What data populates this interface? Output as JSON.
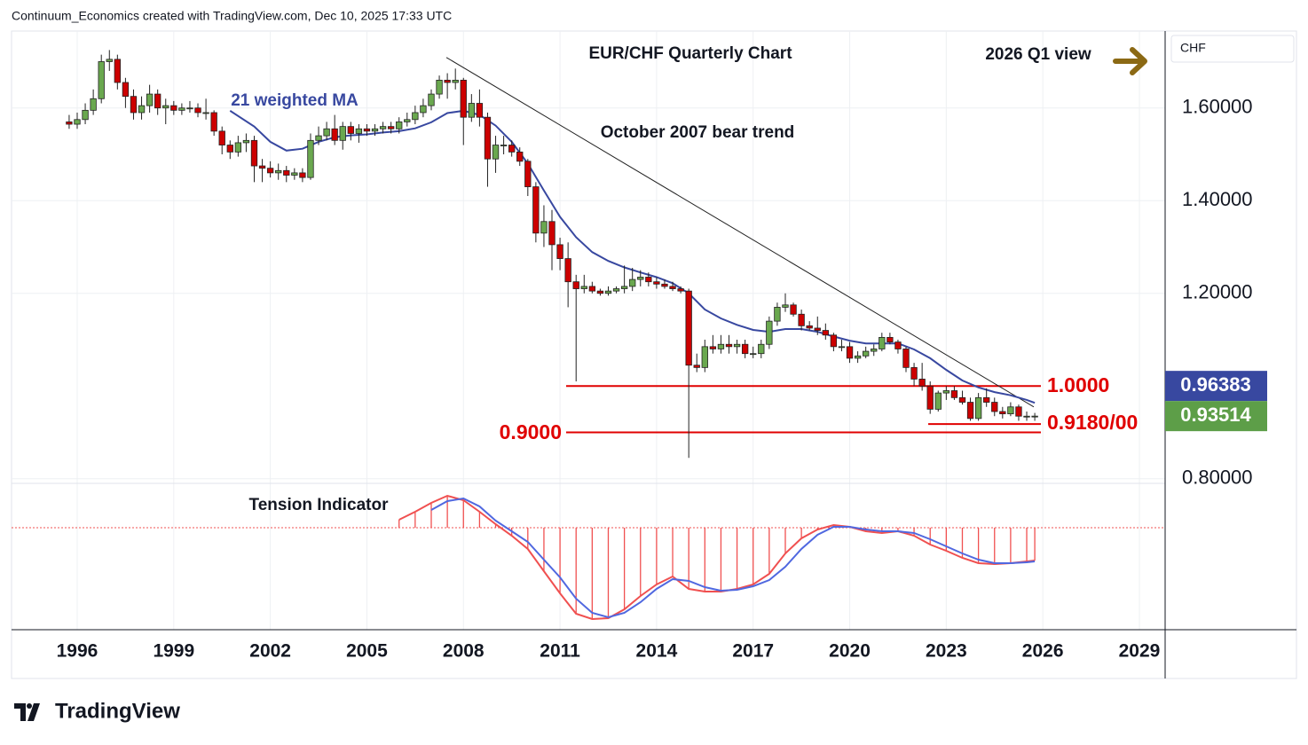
{
  "header": "Continuum_Economics created with TradingView.com, Dec 10, 2025 17:33 UTC",
  "branding": "TradingView",
  "chart_data": [
    {
      "type": "candlestick",
      "title": "EUR/CHF Quarterly Chart",
      "subtitle": "2026 Q1 view",
      "currency": "CHF",
      "up_color": "#6aa84f",
      "down_color": "#cc0000",
      "xlim": [
        1993.96,
        2029.8
      ],
      "xticks": [
        1996,
        1999,
        2002,
        2005,
        2008,
        2011,
        2014,
        2017,
        2020,
        2023,
        2026,
        2029
      ],
      "ylim": [
        0.79,
        1.766
      ],
      "yticks": [
        {
          "value": 0.8,
          "label": "0.80000"
        },
        {
          "value": 1.2,
          "label": "1.20000"
        },
        {
          "value": 1.4,
          "label": "1.40000"
        },
        {
          "value": 1.6,
          "label": "1.60000"
        }
      ],
      "grid": true,
      "x": [
        1995.75,
        1996,
        1996.25,
        1996.5,
        1996.75,
        1997,
        1997.25,
        1997.5,
        1997.75,
        1998,
        1998.25,
        1998.5,
        1998.75,
        1999,
        1999.25,
        1999.5,
        1999.75,
        2000,
        2000.25,
        2000.5,
        2000.75,
        2001,
        2001.25,
        2001.5,
        2001.75,
        2002,
        2002.25,
        2002.5,
        2002.75,
        2003,
        2003.25,
        2003.5,
        2003.75,
        2004,
        2004.25,
        2004.5,
        2004.75,
        2005,
        2005.25,
        2005.5,
        2005.75,
        2006,
        2006.25,
        2006.5,
        2006.75,
        2007,
        2007.25,
        2007.5,
        2007.75,
        2008,
        2008.25,
        2008.5,
        2008.75,
        2009,
        2009.25,
        2009.5,
        2009.75,
        2010,
        2010.25,
        2010.5,
        2010.75,
        2011,
        2011.25,
        2011.5,
        2011.75,
        2012,
        2012.25,
        2012.5,
        2012.75,
        2013,
        2013.25,
        2013.5,
        2013.75,
        2014,
        2014.25,
        2014.5,
        2014.75,
        2015,
        2015.25,
        2015.5,
        2015.75,
        2016,
        2016.25,
        2016.5,
        2016.75,
        2017,
        2017.25,
        2017.5,
        2017.75,
        2018,
        2018.25,
        2018.5,
        2018.75,
        2019,
        2019.25,
        2019.5,
        2019.75,
        2020,
        2020.25,
        2020.5,
        2020.75,
        2021,
        2021.25,
        2021.5,
        2021.75,
        2022,
        2022.25,
        2022.5,
        2022.75,
        2023,
        2023.25,
        2023.5,
        2023.75,
        2024,
        2024.25,
        2024.5,
        2024.75,
        2025,
        2025.25,
        2025.5,
        2025.75
      ],
      "open": [
        1.57,
        1.565,
        1.575,
        1.595,
        1.62,
        1.7,
        1.705,
        1.655,
        1.625,
        1.59,
        1.605,
        1.63,
        1.6,
        1.605,
        1.595,
        1.6,
        1.6,
        1.59,
        1.59,
        1.55,
        1.52,
        1.505,
        1.525,
        1.53,
        1.475,
        1.47,
        1.46,
        1.465,
        1.455,
        1.46,
        1.45,
        1.53,
        1.54,
        1.555,
        1.53,
        1.56,
        1.545,
        1.555,
        1.55,
        1.555,
        1.56,
        1.555,
        1.57,
        1.575,
        1.59,
        1.605,
        1.63,
        1.66,
        1.655,
        1.66,
        1.58,
        1.61,
        1.58,
        1.49,
        1.52,
        1.52,
        1.505,
        1.485,
        1.43,
        1.33,
        1.355,
        1.305,
        1.275,
        1.225,
        1.21,
        1.215,
        1.205,
        1.2,
        1.205,
        1.21,
        1.215,
        1.23,
        1.235,
        1.225,
        1.22,
        1.215,
        1.21,
        1.205,
        1.045,
        1.04,
        1.085,
        1.08,
        1.09,
        1.085,
        1.09,
        1.07,
        1.07,
        1.09,
        1.14,
        1.17,
        1.175,
        1.155,
        1.13,
        1.125,
        1.12,
        1.11,
        1.085,
        1.085,
        1.06,
        1.065,
        1.075,
        1.08,
        1.105,
        1.095,
        1.08,
        1.04,
        1.015,
        1.0,
        0.95,
        0.985,
        0.99,
        0.975,
        0.965,
        0.93,
        0.975,
        0.965,
        0.945,
        0.94,
        0.955,
        0.935,
        0.935
      ],
      "high": [
        1.585,
        1.59,
        1.61,
        1.64,
        1.715,
        1.725,
        1.715,
        1.665,
        1.64,
        1.625,
        1.65,
        1.64,
        1.62,
        1.615,
        1.61,
        1.615,
        1.61,
        1.62,
        1.595,
        1.56,
        1.53,
        1.54,
        1.545,
        1.54,
        1.49,
        1.485,
        1.48,
        1.475,
        1.47,
        1.47,
        1.545,
        1.56,
        1.57,
        1.585,
        1.57,
        1.57,
        1.565,
        1.565,
        1.565,
        1.57,
        1.57,
        1.58,
        1.59,
        1.605,
        1.62,
        1.64,
        1.67,
        1.675,
        1.685,
        1.665,
        1.63,
        1.64,
        1.59,
        1.54,
        1.54,
        1.53,
        1.515,
        1.49,
        1.44,
        1.39,
        1.38,
        1.32,
        1.31,
        1.24,
        1.24,
        1.225,
        1.21,
        1.215,
        1.215,
        1.26,
        1.255,
        1.25,
        1.245,
        1.235,
        1.23,
        1.225,
        1.215,
        1.21,
        1.07,
        1.1,
        1.11,
        1.11,
        1.11,
        1.1,
        1.1,
        1.085,
        1.1,
        1.15,
        1.18,
        1.2,
        1.18,
        1.165,
        1.14,
        1.15,
        1.135,
        1.115,
        1.1,
        1.095,
        1.075,
        1.085,
        1.09,
        1.115,
        1.115,
        1.1,
        1.085,
        1.05,
        1.05,
        1.01,
        0.99,
        1.0,
        1.0,
        0.99,
        0.975,
        0.985,
        0.995,
        0.975,
        0.955,
        0.965,
        0.96,
        0.945,
        0.942
      ],
      "low": [
        1.555,
        1.555,
        1.565,
        1.585,
        1.61,
        1.68,
        1.64,
        1.6,
        1.575,
        1.575,
        1.59,
        1.585,
        1.565,
        1.585,
        1.585,
        1.59,
        1.58,
        1.575,
        1.54,
        1.5,
        1.49,
        1.495,
        1.505,
        1.44,
        1.44,
        1.45,
        1.445,
        1.44,
        1.445,
        1.44,
        1.445,
        1.52,
        1.53,
        1.52,
        1.51,
        1.53,
        1.525,
        1.54,
        1.54,
        1.545,
        1.545,
        1.545,
        1.56,
        1.565,
        1.58,
        1.595,
        1.62,
        1.62,
        1.64,
        1.52,
        1.57,
        1.56,
        1.43,
        1.46,
        1.5,
        1.495,
        1.475,
        1.41,
        1.31,
        1.3,
        1.25,
        1.25,
        1.17,
        1.01,
        1.2,
        1.2,
        1.195,
        1.195,
        1.2,
        1.2,
        1.205,
        1.215,
        1.215,
        1.21,
        1.21,
        1.205,
        1.2,
        0.845,
        1.03,
        1.03,
        1.07,
        1.07,
        1.07,
        1.07,
        1.06,
        1.06,
        1.06,
        1.08,
        1.13,
        1.16,
        1.15,
        1.12,
        1.12,
        1.11,
        1.1,
        1.075,
        1.075,
        1.05,
        1.05,
        1.06,
        1.065,
        1.075,
        1.09,
        1.07,
        1.03,
        1.0,
        0.99,
        0.94,
        0.945,
        0.97,
        0.97,
        0.96,
        0.925,
        0.925,
        0.955,
        0.935,
        0.93,
        0.935,
        0.925,
        0.925,
        0.925
      ],
      "close": [
        1.565,
        1.575,
        1.595,
        1.62,
        1.7,
        1.705,
        1.655,
        1.625,
        1.59,
        1.605,
        1.63,
        1.6,
        1.605,
        1.595,
        1.6,
        1.6,
        1.59,
        1.59,
        1.55,
        1.52,
        1.505,
        1.525,
        1.53,
        1.475,
        1.47,
        1.46,
        1.465,
        1.455,
        1.46,
        1.45,
        1.53,
        1.54,
        1.555,
        1.53,
        1.56,
        1.545,
        1.555,
        1.55,
        1.555,
        1.56,
        1.555,
        1.57,
        1.575,
        1.59,
        1.605,
        1.63,
        1.66,
        1.655,
        1.66,
        1.58,
        1.61,
        1.58,
        1.49,
        1.52,
        1.52,
        1.505,
        1.485,
        1.43,
        1.33,
        1.355,
        1.305,
        1.275,
        1.225,
        1.21,
        1.215,
        1.205,
        1.2,
        1.205,
        1.21,
        1.215,
        1.23,
        1.235,
        1.225,
        1.22,
        1.215,
        1.21,
        1.205,
        1.045,
        1.04,
        1.085,
        1.08,
        1.09,
        1.085,
        1.09,
        1.07,
        1.07,
        1.09,
        1.14,
        1.17,
        1.175,
        1.155,
        1.13,
        1.125,
        1.12,
        1.11,
        1.085,
        1.085,
        1.06,
        1.065,
        1.075,
        1.08,
        1.105,
        1.095,
        1.08,
        1.04,
        1.015,
        1.0,
        0.95,
        0.985,
        0.99,
        0.975,
        0.965,
        0.93,
        0.975,
        0.965,
        0.945,
        0.94,
        0.955,
        0.935,
        0.935,
        0.93514
      ],
      "ma": {
        "name": "21 weighted MA",
        "color": "#3848a0",
        "x": [
          2000.75,
          2001.5,
          2002,
          2002.5,
          2003,
          2003.5,
          2004,
          2004.5,
          2005,
          2005.5,
          2006,
          2006.5,
          2007,
          2007.5,
          2008,
          2008.5,
          2009,
          2009.5,
          2010,
          2010.5,
          2011,
          2011.5,
          2012,
          2012.5,
          2013,
          2013.5,
          2014,
          2014.5,
          2015,
          2015.5,
          2016,
          2016.5,
          2017,
          2017.5,
          2018,
          2018.5,
          2019,
          2019.5,
          2020,
          2020.5,
          2021,
          2021.5,
          2022,
          2022.5,
          2023,
          2023.5,
          2024,
          2024.5,
          2025,
          2025.5,
          2025.75
        ],
        "values": [
          1.594,
          1.56,
          1.527,
          1.508,
          1.512,
          1.527,
          1.537,
          1.541,
          1.543,
          1.547,
          1.55,
          1.556,
          1.569,
          1.589,
          1.594,
          1.585,
          1.562,
          1.527,
          1.48,
          1.422,
          1.365,
          1.321,
          1.289,
          1.27,
          1.256,
          1.245,
          1.235,
          1.222,
          1.2,
          1.165,
          1.146,
          1.132,
          1.121,
          1.117,
          1.123,
          1.123,
          1.117,
          1.107,
          1.098,
          1.092,
          1.092,
          1.092,
          1.079,
          1.06,
          1.035,
          1.012,
          0.997,
          0.987,
          0.98,
          0.97,
          0.96383
        ]
      },
      "trend_line": {
        "label": "October 2007 bear trend",
        "color": "#222222",
        "x": [
          2007.47,
          2025.72
        ],
        "values": [
          1.709,
          0.955
        ]
      },
      "levels": [
        {
          "value": 1.0,
          "label": "1.0000",
          "x": [
            2011.19,
            2025.94
          ]
        },
        {
          "value": 0.918,
          "label": "0.9180/00",
          "x": [
            2022.44,
            2025.94
          ]
        },
        {
          "value": 0.9,
          "label": "0.9000",
          "x": [
            2011.19,
            2025.94
          ]
        }
      ],
      "level_color": "#e00000",
      "last_price_color": "#5d9e48"
    },
    {
      "type": "line",
      "title": "Tension Indicator",
      "ylim": [
        -11,
        5
      ],
      "histogram": true,
      "x": [
        2006,
        2006.5,
        2007,
        2007.5,
        2008,
        2008.5,
        2009,
        2009.5,
        2010,
        2010.5,
        2011,
        2011.5,
        2012,
        2012.5,
        2013,
        2013.5,
        2014,
        2014.5,
        2015,
        2015.5,
        2016,
        2016.5,
        2017,
        2017.5,
        2018,
        2018.5,
        2019,
        2019.5,
        2020,
        2020.5,
        2021,
        2021.5,
        2022,
        2022.5,
        2023,
        2023.5,
        2024,
        2024.5,
        2025,
        2025.5,
        2025.75
      ],
      "series": [
        {
          "color": "#f05050",
          "values": [
            0.9,
            1.8,
            2.8,
            3.6,
            3.1,
            1.8,
            0.4,
            -0.9,
            -2.4,
            -4.9,
            -7.4,
            -9.7,
            -10.3,
            -10.2,
            -9.2,
            -7.7,
            -6.4,
            -5.5,
            -6.9,
            -7.2,
            -7.2,
            -6.9,
            -6.4,
            -5.2,
            -2.9,
            -1.2,
            -0.2,
            0.3,
            0.1,
            -0.4,
            -0.6,
            -0.4,
            -0.9,
            -1.9,
            -2.6,
            -3.4,
            -4.0,
            -4.1,
            -4.0,
            -3.8,
            -3.7
          ]
        },
        {
          "color": "#5068e0",
          "values": [
            null,
            null,
            2.0,
            3.0,
            3.3,
            2.4,
            0.8,
            -0.4,
            -1.6,
            -3.6,
            -5.6,
            -8.0,
            -9.6,
            -10.1,
            -9.6,
            -8.4,
            -6.9,
            -5.8,
            -6.0,
            -6.7,
            -7.1,
            -7.0,
            -6.6,
            -5.9,
            -4.4,
            -2.4,
            -0.8,
            0.1,
            0.1,
            -0.2,
            -0.4,
            -0.4,
            -0.6,
            -1.3,
            -2.1,
            -2.9,
            -3.6,
            -4.0,
            -4.0,
            -3.9,
            -3.8
          ]
        }
      ]
    }
  ]
}
